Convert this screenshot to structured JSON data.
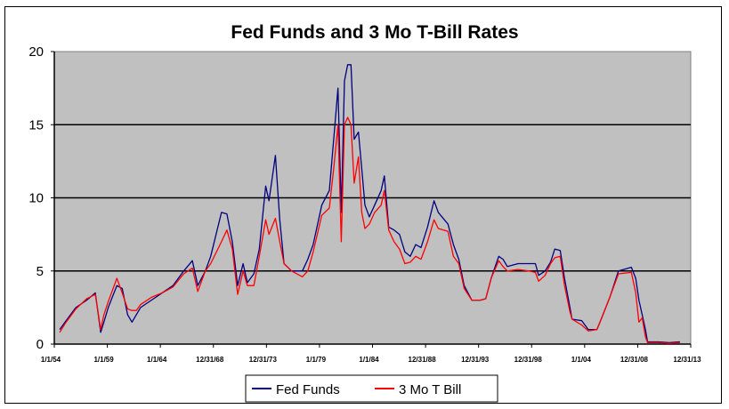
{
  "chart_data": {
    "type": "line",
    "title": "Fed Funds and 3 Mo T-Bill Rates",
    "xlabel": "",
    "ylabel": "",
    "ylim": [
      0,
      20
    ],
    "xlim": [
      1954,
      2013
    ],
    "yticks": [
      "0",
      "5",
      "10",
      "15",
      "20"
    ],
    "xtick_labels": [
      "1/1/54",
      "1/1/59",
      "1/1/64",
      "12/31/68",
      "12/31/73",
      "1/1/79",
      "1/1/84",
      "12/31/88",
      "12/31/93",
      "12/31/98",
      "1/1/04",
      "12/31/08",
      "12/31/13"
    ],
    "grid": "horizontal major lines",
    "plot_background": "#c0c0c0",
    "legend_position": "bottom",
    "x": [
      1954.5,
      1955,
      1956,
      1957,
      1957.8,
      1958.3,
      1958.6,
      1959,
      1959.8,
      1960.3,
      1960.8,
      1961.2,
      1961.6,
      1962,
      1963,
      1964,
      1965,
      1966,
      1966.8,
      1967.3,
      1968,
      1968.5,
      1969.5,
      1970,
      1970.5,
      1971,
      1971.5,
      1971.9,
      1972.5,
      1973,
      1973.6,
      1973.9,
      1974.5,
      1974.9,
      1975.3,
      1976,
      1977,
      1977.5,
      1978,
      1978.8,
      1979.5,
      1979.9,
      1980.3,
      1980.6,
      1980.9,
      1981.2,
      1981.5,
      1981.8,
      1982.2,
      1982.5,
      1982.8,
      1983.2,
      1983.7,
      1984.3,
      1984.6,
      1985,
      1985.5,
      1986,
      1986.5,
      1987,
      1987.5,
      1988,
      1988.6,
      1989.2,
      1989.6,
      1990.5,
      1991,
      1991.5,
      1992,
      1992.7,
      1993.5,
      1994,
      1994.5,
      1995.2,
      1995.6,
      1996,
      1997,
      1998,
      1998.6,
      1998.9,
      1999.5,
      2000,
      2000.4,
      2000.9,
      2001.3,
      2001.8,
      2002,
      2002.9,
      2003.5,
      2004.3,
      2004.7,
      2005.5,
      2006.3,
      2007.5,
      2007.9,
      2008.2,
      2008.5,
      2008.8,
      2009,
      2010,
      2011,
      2012
    ],
    "series": [
      {
        "name": "Fed Funds",
        "color": "#000080",
        "values": [
          1.0,
          1.5,
          2.5,
          3.0,
          3.5,
          0.8,
          1.5,
          2.5,
          4.0,
          3.8,
          2.0,
          1.5,
          2.0,
          2.5,
          3.0,
          3.5,
          4.0,
          5.0,
          5.7,
          4.0,
          5.0,
          6.0,
          9.0,
          8.9,
          7.0,
          4.0,
          5.5,
          4.2,
          4.8,
          6.5,
          10.8,
          9.8,
          12.9,
          8.5,
          5.5,
          5.0,
          5.0,
          5.8,
          6.8,
          9.5,
          10.5,
          14.0,
          17.5,
          9.0,
          18.0,
          19.1,
          19.1,
          14.0,
          14.5,
          12.0,
          9.5,
          8.7,
          9.5,
          10.5,
          11.5,
          8.0,
          7.8,
          7.5,
          6.3,
          6.0,
          6.8,
          6.6,
          8.0,
          9.8,
          9.0,
          8.2,
          6.8,
          5.8,
          4.0,
          3.0,
          3.0,
          3.1,
          4.5,
          6.0,
          5.8,
          5.3,
          5.5,
          5.5,
          5.5,
          4.7,
          5.0,
          5.6,
          6.5,
          6.4,
          4.5,
          2.5,
          1.7,
          1.6,
          1.0,
          1.0,
          1.7,
          3.2,
          5.0,
          5.25,
          4.5,
          3.0,
          2.0,
          1.0,
          0.15,
          0.15,
          0.1,
          0.15
        ]
      },
      {
        "name": "3 Mo T Bill",
        "color": "#ff0000",
        "values": [
          0.8,
          1.4,
          2.4,
          3.1,
          3.4,
          1.0,
          2.0,
          2.9,
          4.5,
          3.5,
          2.4,
          2.3,
          2.3,
          2.7,
          3.2,
          3.5,
          3.9,
          4.8,
          5.2,
          3.6,
          5.0,
          5.5,
          7.0,
          7.8,
          6.5,
          3.4,
          5.0,
          4.0,
          4.0,
          6.0,
          8.5,
          7.5,
          8.6,
          7.0,
          5.5,
          5.0,
          4.6,
          5.0,
          6.3,
          8.8,
          9.3,
          12.0,
          15.0,
          7.0,
          15.0,
          15.5,
          15.0,
          11.0,
          12.8,
          9.0,
          7.9,
          8.2,
          9.0,
          9.5,
          10.5,
          7.8,
          7.0,
          6.5,
          5.5,
          5.6,
          6.0,
          5.8,
          7.0,
          8.5,
          7.9,
          7.7,
          6.0,
          5.5,
          3.8,
          3.0,
          3.0,
          3.1,
          4.5,
          5.7,
          5.3,
          5.0,
          5.1,
          5.0,
          4.9,
          4.3,
          4.7,
          5.5,
          5.9,
          6.0,
          4.0,
          2.2,
          1.7,
          1.3,
          0.9,
          1.0,
          1.7,
          3.2,
          4.8,
          4.9,
          3.5,
          1.5,
          1.8,
          0.5,
          0.1,
          0.1,
          0.05,
          0.1
        ]
      }
    ]
  }
}
